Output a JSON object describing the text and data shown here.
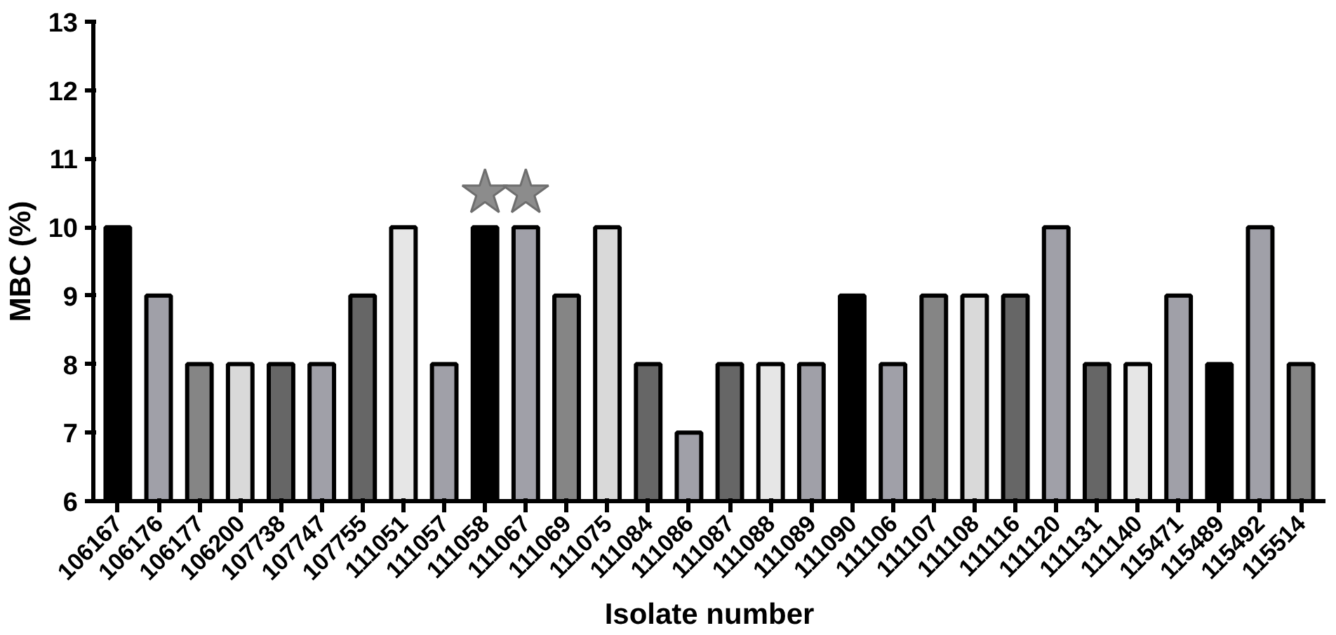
{
  "chart_data": {
    "type": "bar",
    "xlabel": "Isolate number",
    "ylabel": "MBC (%)",
    "categories": [
      "106167",
      "106176",
      "106177",
      "106200",
      "107738",
      "107747",
      "107755",
      "111051",
      "111057",
      "111058",
      "111067",
      "111069",
      "111075",
      "111084",
      "111086",
      "111087",
      "111088",
      "111089",
      "111090",
      "111106",
      "111107",
      "111108",
      "111116",
      "111120",
      "111131",
      "111140",
      "115471",
      "115489",
      "115492",
      "115514"
    ],
    "series": [
      {
        "values": [
          10,
          9,
          8,
          8,
          8,
          8,
          9,
          10,
          8,
          10,
          10,
          9,
          10,
          8,
          7,
          8,
          8,
          8,
          9,
          8,
          9,
          9,
          9,
          10,
          8,
          8,
          9,
          8,
          10,
          8
        ],
        "colors": [
          "#000000",
          "#a0a0a8",
          "#858585",
          "#d9d9d9",
          "#666666",
          "#a0a0a8",
          "#666666",
          "#e6e6e6",
          "#a0a0a8",
          "#000000",
          "#a0a0a8",
          "#858585",
          "#d9d9d9",
          "#666666",
          "#a0a0a8",
          "#666666",
          "#e6e6e6",
          "#a0a0a8",
          "#000000",
          "#a0a0a8",
          "#858585",
          "#d9d9d9",
          "#666666",
          "#a0a0a8",
          "#666666",
          "#e6e6e6",
          "#a0a0a8",
          "#000000",
          "#a0a0a8",
          "#858585"
        ]
      },
      {
        "type": "scatter",
        "marker": "star",
        "color": "#8c8c8c",
        "x": [
          "111058",
          "111067"
        ],
        "values": [
          10.5,
          10.5
        ]
      }
    ],
    "ylim": [
      6,
      13
    ],
    "yticks": [
      6,
      7,
      8,
      9,
      10,
      11,
      12,
      13
    ],
    "grid": false
  }
}
